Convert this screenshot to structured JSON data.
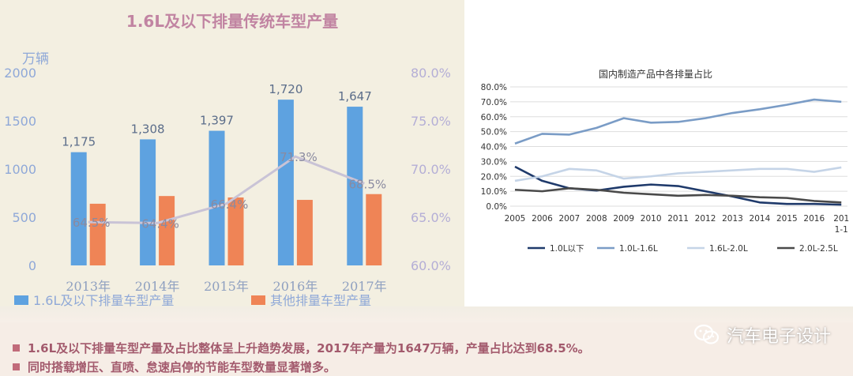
{
  "chart_data": [
    {
      "type": "bar+line",
      "title": "1.6L及以下排量传统车型产量",
      "y_unit": "万辆",
      "categories": [
        "2013年",
        "2014年",
        "2015年",
        "2016年",
        "2017年"
      ],
      "series": [
        {
          "name": "1.6L及以下排量车型产量",
          "type": "bar",
          "values": [
            1175,
            1308,
            1397,
            1720,
            1647
          ],
          "labels": [
            "1,175",
            "1,308",
            "1,397",
            "1,720",
            "1,647"
          ],
          "color": "#5ea2e0"
        },
        {
          "name": "其他排量车型产量",
          "type": "bar",
          "values": [
            640,
            720,
            705,
            680,
            740
          ],
          "color": "#ef8456"
        },
        {
          "name": "",
          "type": "line",
          "axis": "right",
          "values": [
            64.5,
            64.4,
            66.4,
            71.3,
            68.5
          ],
          "labels": [
            "64.5%",
            "64.4%",
            "66.4%",
            "71.3%",
            "68.5%"
          ],
          "color": "#c9c3d6"
        }
      ],
      "ylim_left": [
        0,
        2000
      ],
      "yticks_left": [
        0,
        500,
        1000,
        1500,
        2000
      ],
      "ylim_right": [
        60,
        80
      ],
      "yticks_right": [
        "60.0%",
        "65.0%",
        "70.0%",
        "75.0%",
        "80.0%"
      ],
      "grid": false,
      "legend_position": "bottom"
    },
    {
      "type": "line",
      "title": "国内制造产品中各排量占比",
      "x": [
        "2005",
        "2006",
        "2007",
        "2008",
        "2009",
        "2010",
        "2011",
        "2012",
        "2013",
        "2014",
        "2015",
        "2016",
        "201"
      ],
      "x_last_sub": "1-1",
      "ylim": [
        0,
        80
      ],
      "yticks": [
        "0.0%",
        "10.0%",
        "20.0%",
        "30.0%",
        "40.0%",
        "50.0%",
        "60.0%",
        "70.0%",
        "80.0%"
      ],
      "grid": true,
      "legend_position": "bottom",
      "series": [
        {
          "name": "1.0L以下",
          "color": "#1f3a6b",
          "values": [
            26.5,
            17,
            12,
            10.5,
            13,
            14.5,
            13.5,
            10,
            6.5,
            2.5,
            1.5,
            1.5,
            1
          ]
        },
        {
          "name": "1.0L-1.6L",
          "color": "#7a9cc6",
          "values": [
            42,
            48.5,
            48,
            52.5,
            59,
            56,
            56.5,
            59,
            62.5,
            65,
            68,
            71.5,
            70
          ]
        },
        {
          "name": "1.6L-2.0L",
          "color": "#c5d4e7",
          "values": [
            17,
            20,
            25,
            24,
            18.5,
            20,
            22,
            23,
            24,
            25,
            25,
            23,
            26
          ]
        },
        {
          "name": "2.0L-2.5L",
          "color": "#4a4a4a",
          "values": [
            11,
            10,
            12,
            11,
            9,
            8,
            7,
            7.5,
            7,
            6,
            5.5,
            3.5,
            2.5
          ]
        }
      ]
    }
  ],
  "bullets": [
    "1.6L及以下排量车型产量及占比整体呈上升趋势发展，2017年产量为1647万辆，产量占比达到68.5%。",
    "同时搭载增压、直喷、怠速启停的节能车型数量显著增多。"
  ],
  "brand": {
    "name": "汽车电子设计",
    "icon": "wechat-icon"
  }
}
